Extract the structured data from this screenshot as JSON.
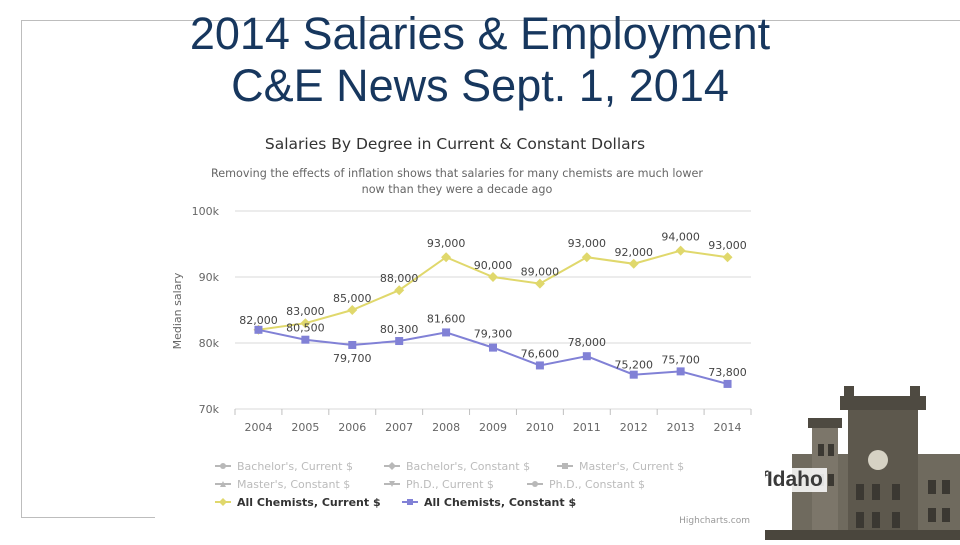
{
  "slide": {
    "title_line1": "2014 Salaries & Employment",
    "title_line2": "C&E News Sept. 1, 2014"
  },
  "colors": {
    "title": "#17375e",
    "current": "#e0d86c",
    "constant": "#8181d6",
    "grid": "#d8d8d8",
    "text": "#555555",
    "legend_muted": "#b8b8b8"
  },
  "branding": {
    "logo_prefix": "f",
    "logo_text": "Idaho",
    "credits": "Highcharts.com"
  },
  "chart_data": {
    "type": "line",
    "title": "Salaries By Degree in Current & Constant Dollars",
    "subtitle_line1": "Removing the effects of inflation shows that salaries for many chemists are much lower",
    "subtitle_line2": "now than they were a decade ago",
    "ylabel": "Median salary",
    "ylim": [
      70000,
      100000
    ],
    "yticks": [
      {
        "value": 70000,
        "label": "70k"
      },
      {
        "value": 80000,
        "label": "80k"
      },
      {
        "value": 90000,
        "label": "90k"
      },
      {
        "value": 100000,
        "label": "100k"
      }
    ],
    "categories": [
      "2004",
      "2005",
      "2006",
      "2007",
      "2008",
      "2009",
      "2010",
      "2011",
      "2012",
      "2013",
      "2014"
    ],
    "series": [
      {
        "name": "All Chemists, Current $",
        "color": "#e0d86c",
        "marker": "diamond",
        "values": [
          82000,
          83000,
          85000,
          88000,
          93000,
          90000,
          89000,
          93000,
          92000,
          94000,
          93000
        ],
        "labels": [
          "82,000",
          "83,000",
          "85,000",
          "88,000",
          "93,000",
          "90,000",
          "89,000",
          "93,000",
          "92,000",
          "94,000",
          "93,000"
        ]
      },
      {
        "name": "All Chemists, Constant $",
        "color": "#8181d6",
        "marker": "square",
        "values": [
          82000,
          80500,
          79700,
          80300,
          81600,
          79300,
          76600,
          78000,
          75200,
          75700,
          73800
        ],
        "labels": [
          "82,000",
          "80,500",
          "79,700",
          "80,300",
          "81,600",
          "79,300",
          "76,600",
          "78,000",
          "75,200",
          "75,700",
          "73,800"
        ]
      }
    ],
    "legend": [
      {
        "name": "Bachelor's, Current $",
        "marker": "circle",
        "active": false
      },
      {
        "name": "Bachelor's, Constant $",
        "marker": "diamond",
        "active": false
      },
      {
        "name": "Master's, Current $",
        "marker": "square",
        "active": false
      },
      {
        "name": "Master's, Constant $",
        "marker": "triangle",
        "active": false
      },
      {
        "name": "Ph.D., Current $",
        "marker": "triangle-down",
        "active": false
      },
      {
        "name": "Ph.D., Constant $",
        "marker": "circle",
        "active": false
      },
      {
        "name": "All Chemists, Current $",
        "marker": "diamond",
        "active": true,
        "color": "#e0d86c"
      },
      {
        "name": "All Chemists, Constant $",
        "marker": "square",
        "active": true,
        "color": "#8181d6"
      }
    ],
    "legend_position": "bottom",
    "grid": true
  }
}
